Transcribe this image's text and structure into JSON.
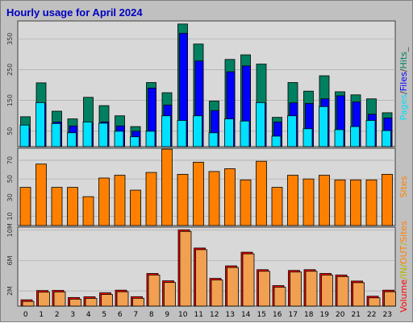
{
  "title": "Hourly usage for April 2024",
  "colors": {
    "frame_bg": "#c0c0c0",
    "panel_bg": "#d8d8d8",
    "grid": "#aaaaaa",
    "title": "#0000c0",
    "pages": "#00e0ff",
    "files": "#0000ff",
    "hits": "#008060",
    "sites": "#ff8000",
    "kbytes": "#ff0000",
    "kbytes_fill": "#f0a050"
  },
  "chart_data": [
    {
      "name": "Pages/Files/Hits",
      "type": "bar",
      "categories": [
        "0",
        "1",
        "2",
        "3",
        "4",
        "5",
        "6",
        "7",
        "8",
        "9",
        "10",
        "11",
        "12",
        "13",
        "14",
        "15",
        "16",
        "17",
        "18",
        "19",
        "20",
        "21",
        "22",
        "23"
      ],
      "series": [
        {
          "name": "Hits",
          "values": [
            97,
            207,
            115,
            90,
            160,
            133,
            100,
            65,
            208,
            175,
            398,
            333,
            148,
            283,
            298,
            268,
            95,
            208,
            180,
            230,
            178,
            168,
            155,
            110
          ]
        },
        {
          "name": "Files",
          "values": [
            58,
            140,
            80,
            67,
            75,
            80,
            67,
            50,
            190,
            135,
            368,
            278,
            117,
            243,
            262,
            140,
            80,
            142,
            140,
            155,
            165,
            145,
            105,
            93
          ]
        },
        {
          "name": "Pages",
          "values": [
            70,
            143,
            75,
            45,
            80,
            76,
            50,
            32,
            50,
            100,
            85,
            100,
            45,
            90,
            83,
            143,
            34,
            100,
            58,
            130,
            55,
            65,
            85,
            52
          ]
        }
      ],
      "yticks": [
        50,
        150,
        250,
        350
      ],
      "ylim": [
        0,
        408
      ],
      "legend": [
        "Pages",
        "/",
        "Files",
        "/",
        "Hits",
        "_"
      ]
    },
    {
      "name": "Sites",
      "type": "bar",
      "categories": [
        "0",
        "1",
        "2",
        "3",
        "4",
        "5",
        "6",
        "7",
        "8",
        "9",
        "10",
        "11",
        "12",
        "13",
        "14",
        "15",
        "16",
        "17",
        "18",
        "19",
        "20",
        "21",
        "22",
        "23"
      ],
      "series": [
        {
          "name": "Sites",
          "values": [
            41,
            66,
            41,
            41,
            31,
            51,
            54,
            38,
            57,
            82,
            55,
            68,
            58,
            61,
            49,
            69,
            41,
            54,
            50,
            54,
            49,
            49,
            49,
            55
          ]
        }
      ],
      "yticks": [
        10,
        30,
        50,
        70
      ],
      "ylim": [
        0,
        83
      ],
      "legend": [
        "Sites"
      ]
    },
    {
      "name": "Volume",
      "type": "bar",
      "categories": [
        "0",
        "1",
        "2",
        "3",
        "4",
        "5",
        "6",
        "7",
        "8",
        "9",
        "10",
        "11",
        "12",
        "13",
        "14",
        "15",
        "16",
        "17",
        "18",
        "19",
        "20",
        "21",
        "22",
        "23"
      ],
      "series": [
        {
          "name": "Volume",
          "values": [
            0.83,
            2.05,
            2.07,
            1.13,
            1.23,
            1.75,
            2.1,
            1.24,
            4.3,
            3.33,
            10.05,
            7.65,
            3.65,
            5.3,
            7.1,
            4.8,
            2.7,
            4.7,
            4.8,
            4.3,
            4.1,
            3.3,
            1.3,
            2.1
          ]
        }
      ],
      "yticks": [
        2,
        6,
        10
      ],
      "ytick_labels": [
        "2M",
        "6M",
        "10M"
      ],
      "ylim": [
        0,
        10.4
      ],
      "legend": [
        "Volume",
        "/",
        "IN",
        "/",
        "OUT",
        "/",
        "Sites"
      ]
    }
  ]
}
